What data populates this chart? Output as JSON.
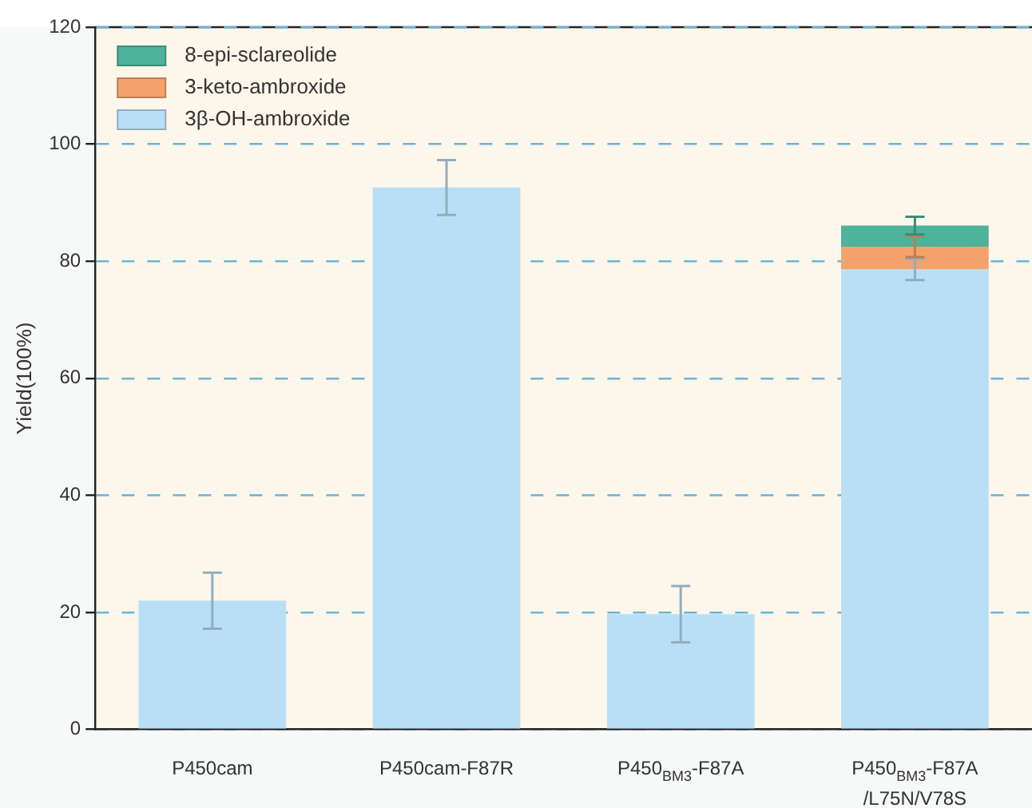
{
  "chart_data": {
    "type": "bar",
    "stacked": true,
    "ylabel": "Yield(100%)",
    "categories": [
      "P450cam",
      "P450cam-F87R",
      "P450$_{BM3}$-F87A",
      "P450$_{BM3}$-F87A\n/L75N/V78S"
    ],
    "series": [
      {
        "name": "3β-OH-ambroxide",
        "color": "#b8dff5",
        "values": [
          22,
          92.6,
          19.7,
          78.6
        ],
        "errors": [
          4.8,
          4.7,
          4.8,
          1.8
        ]
      },
      {
        "name": "3-keto-ambroxide",
        "color": "#f4a26c",
        "values": [
          null,
          null,
          null,
          3.9
        ],
        "errors": [
          null,
          null,
          null,
          1.8
        ]
      },
      {
        "name": "8-epi-sclareolide",
        "color": "#4db39a",
        "values": [
          null,
          null,
          null,
          3.6
        ],
        "errors": [
          null,
          null,
          null,
          1.5
        ]
      }
    ],
    "ylim": [
      0,
      120
    ],
    "yticks": [
      0,
      20,
      40,
      60,
      80,
      100,
      120
    ],
    "grid": "y",
    "legend": "top left"
  }
}
